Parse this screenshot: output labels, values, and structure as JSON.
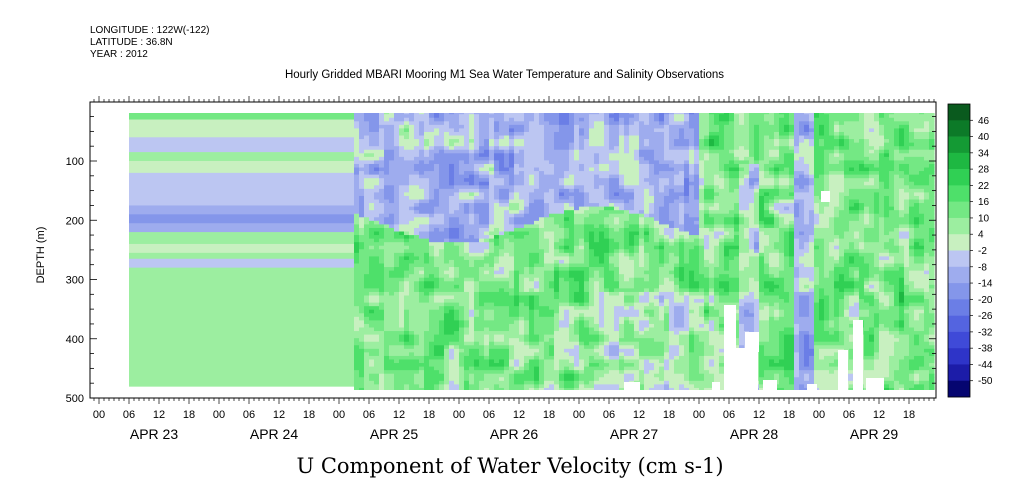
{
  "header": {
    "longitude": "LONGITUDE : 122W(-122)",
    "latitude": "LATITUDE : 36.8N",
    "year": "YEAR : 2012"
  },
  "chart_data": {
    "type": "heatmap",
    "title": "Hourly Gridded MBARI Mooring M1 Sea Water Temperature and Salinity Observations",
    "xlabel": "U Component of Water Velocity (cm s-1)",
    "ylabel": "DEPTH (m)",
    "ylim": [
      500,
      0
    ],
    "yticks": [
      100,
      200,
      300,
      400,
      500
    ],
    "x_hour_ticks": [
      "00",
      "06",
      "12",
      "18",
      "00",
      "06",
      "12",
      "18",
      "00",
      "06",
      "12",
      "18",
      "00",
      "06",
      "12",
      "18",
      "00",
      "06",
      "12",
      "18",
      "00",
      "06",
      "12",
      "18",
      "00",
      "06",
      "12",
      "18"
    ],
    "x_day_labels": [
      "APR 23",
      "APR 24",
      "APR 25",
      "APR 26",
      "APR 27",
      "APR 28",
      "APR 29"
    ],
    "colorbar": {
      "levels": [
        -50,
        -44,
        -38,
        -32,
        -26,
        -20,
        -14,
        -8,
        -2,
        4,
        10,
        16,
        22,
        28,
        34,
        40,
        46
      ],
      "labels": [
        "46",
        "40",
        "34",
        "28",
        "22",
        "16",
        "10",
        "4",
        "-2",
        "-8",
        "-14",
        "-20",
        "-26",
        "-32",
        "-38",
        "-44",
        "-50"
      ],
      "colors_low_to_high": [
        "#050570",
        "#1c1ca8",
        "#2e34c8",
        "#3f4ad8",
        "#5464e0",
        "#6b7ee6",
        "#8496ea",
        "#9eacee",
        "#bcc6f2",
        "#c8f0c0",
        "#9ceea0",
        "#74e884",
        "#4ee06a",
        "#30d054",
        "#1eb842",
        "#149a34",
        "#0c7a28",
        "#0a5a1e"
      ]
    },
    "data_summary": "Apr 23 06 – Apr 25 03: horizontal bands, mostly weak positive (2 to 8), negative bands near 75, 105-165, 180-215, 255 and 270 m. Apr 25 03 onward: upper ~200 m negative (-2 to -14), below ~200 m positive (4 to 22). Mostly positive throughout the column Apr 28 – Apr 29 apart from a negative column near Apr 29 00.",
    "grid": false
  }
}
